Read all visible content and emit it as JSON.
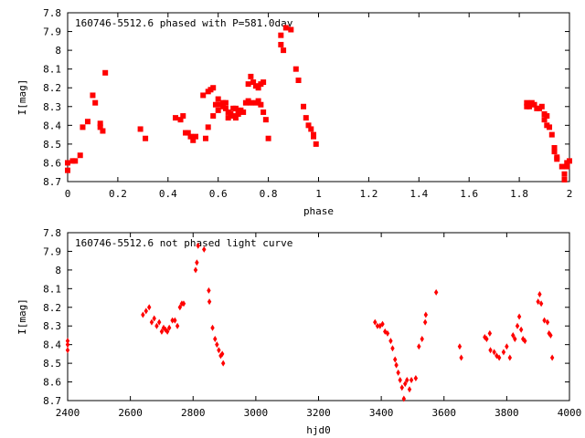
{
  "chart_data": [
    {
      "type": "scatter",
      "title": "160746-5512.6 phased with P=581.0day",
      "xlabel": "phase",
      "ylabel": "I[mag]",
      "xlim": [
        0,
        2
      ],
      "ylim": [
        7.8,
        8.7
      ],
      "y_inverted": true,
      "grid": false,
      "marker_color": "#ff0000",
      "marker_shape": "filled-square",
      "xticks": [
        "0",
        "0.2",
        "0.4",
        "0.6",
        "0.8",
        "1",
        "1.2",
        "1.4",
        "1.6",
        "1.8",
        "2"
      ],
      "yticks": [
        "7.8",
        "7.9",
        "8",
        "8.1",
        "8.2",
        "8.3",
        "8.4",
        "8.5",
        "8.6",
        "8.7"
      ],
      "points": [
        [
          0.0,
          8.6
        ],
        [
          0.0,
          8.64
        ],
        [
          0.02,
          8.59
        ],
        [
          0.03,
          8.59
        ],
        [
          0.05,
          8.56
        ],
        [
          0.06,
          8.41
        ],
        [
          0.08,
          8.38
        ],
        [
          0.1,
          8.24
        ],
        [
          0.11,
          8.28
        ],
        [
          0.13,
          8.39
        ],
        [
          0.13,
          8.41
        ],
        [
          0.14,
          8.43
        ],
        [
          0.15,
          8.12
        ],
        [
          0.29,
          8.42
        ],
        [
          0.31,
          8.47
        ],
        [
          0.43,
          8.36
        ],
        [
          0.45,
          8.37
        ],
        [
          0.46,
          8.35
        ],
        [
          0.47,
          8.44
        ],
        [
          0.48,
          8.44
        ],
        [
          0.49,
          8.46
        ],
        [
          0.5,
          8.48
        ],
        [
          0.51,
          8.46
        ],
        [
          0.54,
          8.24
        ],
        [
          0.55,
          8.47
        ],
        [
          0.56,
          8.22
        ],
        [
          0.56,
          8.41
        ],
        [
          0.57,
          8.21
        ],
        [
          0.58,
          8.35
        ],
        [
          0.58,
          8.2
        ],
        [
          0.59,
          8.29
        ],
        [
          0.6,
          8.32
        ],
        [
          0.6,
          8.26
        ],
        [
          0.61,
          8.29
        ],
        [
          0.62,
          8.3
        ],
        [
          0.62,
          8.28
        ],
        [
          0.63,
          8.31
        ],
        [
          0.63,
          8.28
        ],
        [
          0.64,
          8.33
        ],
        [
          0.64,
          8.36
        ],
        [
          0.65,
          8.34
        ],
        [
          0.66,
          8.31
        ],
        [
          0.66,
          8.35
        ],
        [
          0.67,
          8.36
        ],
        [
          0.67,
          8.31
        ],
        [
          0.68,
          8.32
        ],
        [
          0.68,
          8.34
        ],
        [
          0.69,
          8.32
        ],
        [
          0.7,
          8.33
        ],
        [
          0.71,
          8.28
        ],
        [
          0.72,
          8.18
        ],
        [
          0.72,
          8.27
        ],
        [
          0.73,
          8.14
        ],
        [
          0.73,
          8.28
        ],
        [
          0.74,
          8.17
        ],
        [
          0.75,
          8.28
        ],
        [
          0.75,
          8.19
        ],
        [
          0.76,
          8.2
        ],
        [
          0.76,
          8.27
        ],
        [
          0.77,
          8.18
        ],
        [
          0.77,
          8.29
        ],
        [
          0.78,
          8.33
        ],
        [
          0.78,
          8.17
        ],
        [
          0.79,
          8.37
        ],
        [
          0.8,
          8.47
        ],
        [
          0.85,
          7.92
        ],
        [
          0.85,
          7.97
        ],
        [
          0.86,
          8.0
        ],
        [
          0.87,
          7.88
        ],
        [
          0.89,
          7.89
        ],
        [
          0.91,
          8.1
        ],
        [
          0.92,
          8.16
        ],
        [
          0.94,
          8.3
        ],
        [
          0.95,
          8.36
        ],
        [
          0.96,
          8.4
        ],
        [
          0.97,
          8.42
        ],
        [
          0.98,
          8.45
        ],
        [
          0.98,
          8.46
        ],
        [
          0.99,
          8.5
        ],
        [
          1.83,
          8.28
        ],
        [
          1.83,
          8.3
        ],
        [
          1.84,
          8.3
        ],
        [
          1.85,
          8.28
        ],
        [
          1.86,
          8.29
        ],
        [
          1.87,
          8.31
        ],
        [
          1.88,
          8.31
        ],
        [
          1.89,
          8.3
        ],
        [
          1.9,
          8.37
        ],
        [
          1.9,
          8.34
        ],
        [
          1.91,
          8.35
        ],
        [
          1.91,
          8.4
        ],
        [
          1.92,
          8.41
        ],
        [
          1.93,
          8.45
        ],
        [
          1.94,
          8.52
        ],
        [
          1.94,
          8.54
        ],
        [
          1.95,
          8.57
        ],
        [
          1.95,
          8.58
        ],
        [
          1.97,
          8.62
        ],
        [
          1.98,
          8.66
        ],
        [
          1.98,
          8.69
        ],
        [
          1.99,
          8.62
        ],
        [
          1.99,
          8.6
        ],
        [
          2.0,
          8.59
        ]
      ]
    },
    {
      "type": "scatter",
      "title": "160746-5512.6 not phased light curve",
      "xlabel": "hjd0",
      "ylabel": "I[mag]",
      "xlim": [
        2400,
        4000
      ],
      "ylim": [
        7.8,
        8.7
      ],
      "y_inverted": true,
      "grid": false,
      "marker_color": "#ff0000",
      "marker_shape": "filled-diamond",
      "xticks": [
        "2400",
        "2600",
        "2800",
        "3000",
        "3200",
        "3400",
        "3600",
        "3800",
        "4000"
      ],
      "yticks": [
        "7.8",
        "7.9",
        "8",
        "8.1",
        "8.2",
        "8.3",
        "8.4",
        "8.5",
        "8.6",
        "8.7"
      ],
      "points": [
        [
          2400,
          8.38
        ],
        [
          2400,
          8.4
        ],
        [
          2400,
          8.43
        ],
        [
          2640,
          8.24
        ],
        [
          2650,
          8.22
        ],
        [
          2660,
          8.2
        ],
        [
          2668,
          8.28
        ],
        [
          2676,
          8.26
        ],
        [
          2684,
          8.3
        ],
        [
          2692,
          8.28
        ],
        [
          2700,
          8.33
        ],
        [
          2706,
          8.31
        ],
        [
          2712,
          8.32
        ],
        [
          2718,
          8.33
        ],
        [
          2724,
          8.31
        ],
        [
          2734,
          8.27
        ],
        [
          2742,
          8.27
        ],
        [
          2750,
          8.3
        ],
        [
          2758,
          8.2
        ],
        [
          2764,
          8.18
        ],
        [
          2770,
          8.18
        ],
        [
          2808,
          8.0
        ],
        [
          2812,
          7.96
        ],
        [
          2816,
          7.87
        ],
        [
          2835,
          7.89
        ],
        [
          2850,
          8.11
        ],
        [
          2852,
          8.17
        ],
        [
          2862,
          8.31
        ],
        [
          2870,
          8.37
        ],
        [
          2876,
          8.4
        ],
        [
          2882,
          8.43
        ],
        [
          2888,
          8.46
        ],
        [
          2893,
          8.45
        ],
        [
          2896,
          8.5
        ],
        [
          3380,
          8.28
        ],
        [
          3388,
          8.3
        ],
        [
          3396,
          8.3
        ],
        [
          3404,
          8.29
        ],
        [
          3412,
          8.33
        ],
        [
          3420,
          8.34
        ],
        [
          3430,
          8.38
        ],
        [
          3436,
          8.42
        ],
        [
          3444,
          8.48
        ],
        [
          3448,
          8.51
        ],
        [
          3454,
          8.55
        ],
        [
          3460,
          8.59
        ],
        [
          3466,
          8.63
        ],
        [
          3472,
          8.69
        ],
        [
          3476,
          8.61
        ],
        [
          3482,
          8.59
        ],
        [
          3490,
          8.64
        ],
        [
          3496,
          8.59
        ],
        [
          3510,
          8.58
        ],
        [
          3520,
          8.41
        ],
        [
          3530,
          8.37
        ],
        [
          3540,
          8.28
        ],
        [
          3542,
          8.24
        ],
        [
          3575,
          8.12
        ],
        [
          3650,
          8.41
        ],
        [
          3655,
          8.47
        ],
        [
          3730,
          8.36
        ],
        [
          3736,
          8.37
        ],
        [
          3746,
          8.34
        ],
        [
          3748,
          8.43
        ],
        [
          3760,
          8.44
        ],
        [
          3768,
          8.46
        ],
        [
          3776,
          8.47
        ],
        [
          3790,
          8.44
        ],
        [
          3800,
          8.41
        ],
        [
          3810,
          8.47
        ],
        [
          3820,
          8.35
        ],
        [
          3826,
          8.37
        ],
        [
          3834,
          8.3
        ],
        [
          3840,
          8.25
        ],
        [
          3846,
          8.32
        ],
        [
          3852,
          8.37
        ],
        [
          3858,
          8.38
        ],
        [
          3900,
          8.17
        ],
        [
          3905,
          8.13
        ],
        [
          3910,
          8.18
        ],
        [
          3920,
          8.27
        ],
        [
          3930,
          8.28
        ],
        [
          3935,
          8.34
        ],
        [
          3940,
          8.35
        ],
        [
          3945,
          8.47
        ]
      ]
    }
  ]
}
